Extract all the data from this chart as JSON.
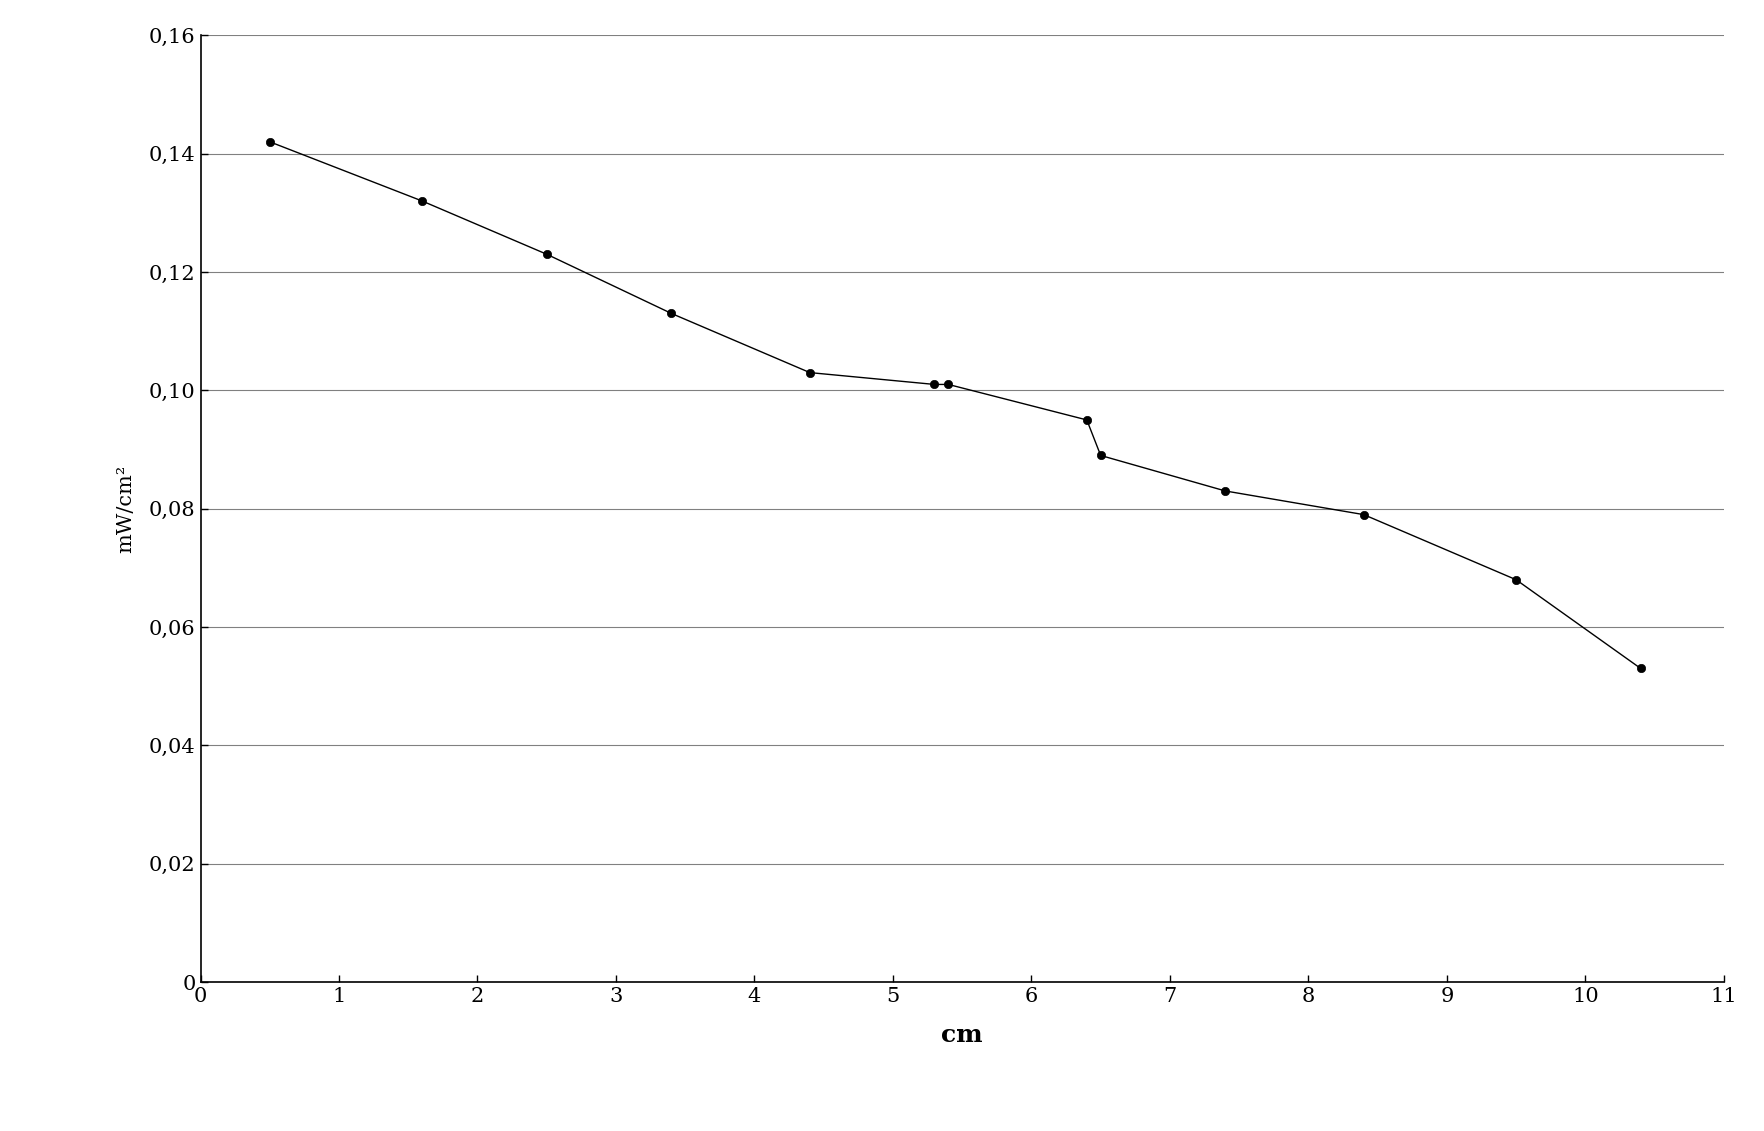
{
  "x": [
    0.5,
    1.6,
    2.5,
    3.4,
    4.4,
    5.3,
    5.4,
    6.4,
    6.5,
    7.4,
    8.4,
    9.5,
    10.4
  ],
  "y": [
    0.142,
    0.132,
    0.123,
    0.113,
    0.103,
    0.101,
    0.101,
    0.095,
    0.089,
    0.083,
    0.079,
    0.068,
    0.053
  ],
  "xlabel": "cm",
  "ylabel": "mW/cm²",
  "xlim": [
    0,
    11
  ],
  "ylim": [
    0,
    0.16
  ],
  "xticks": [
    0,
    1,
    2,
    3,
    4,
    5,
    6,
    7,
    8,
    9,
    10,
    11
  ],
  "yticks": [
    0,
    0.02,
    0.04,
    0.06,
    0.08,
    0.1,
    0.12,
    0.14,
    0.16
  ],
  "ytick_labels": [
    "0",
    "0,02",
    "0,04",
    "0,06",
    "0,08",
    "0,10",
    "0,12",
    "0,14",
    "0,16"
  ],
  "background_color": "#ffffff",
  "plot_bg_color": "#ffffff",
  "line_color": "#000000",
  "marker_color": "#000000",
  "marker": "o",
  "marker_size": 6,
  "line_width": 1.0,
  "grid_color": "#808080",
  "grid_linewidth": 0.8,
  "xlabel_fontsize": 18,
  "ylabel_fontsize": 15,
  "tick_fontsize": 15,
  "spine_color": "#000000",
  "spine_linewidth": 1.2
}
